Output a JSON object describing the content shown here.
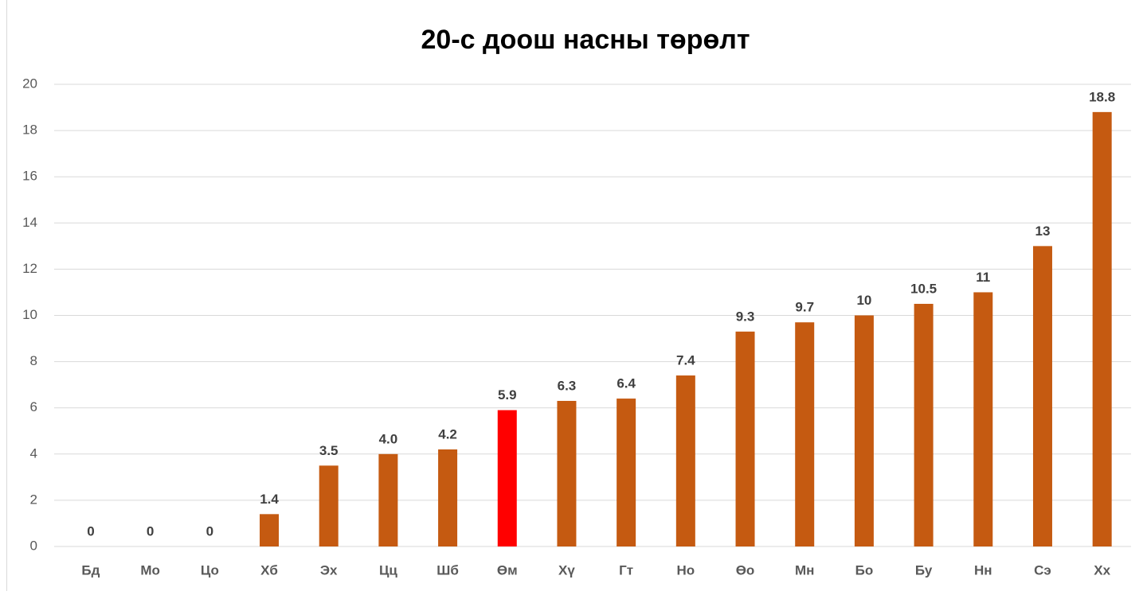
{
  "chart_data": {
    "type": "bar",
    "title": "20-с доош насны төрөлт",
    "categories": [
      "Бд",
      "Мо",
      "Цо",
      "Хб",
      "Эх",
      "Цц",
      "Шб",
      "Өм",
      "Хү",
      "Гт",
      "Но",
      "Өо",
      "Мн",
      "Бо",
      "Бу",
      "Нн",
      "Сэ",
      "Хх"
    ],
    "values": [
      0,
      0,
      0,
      1.4,
      3.5,
      4,
      4.2,
      5.9,
      6.3,
      6.4,
      7.4,
      9.3,
      9.7,
      10,
      10.5,
      11,
      13,
      18.8
    ],
    "value_labels": [
      "0",
      "0",
      "0",
      "1.4",
      "3.5",
      "4.0",
      "4.2",
      "5.9",
      "6.3",
      "6.4",
      "7.4",
      "9.3",
      "9.7",
      "10",
      "10.5",
      "11",
      "13",
      "18.8"
    ],
    "colors": [
      "#c55a11",
      "#c55a11",
      "#c55a11",
      "#c55a11",
      "#c55a11",
      "#c55a11",
      "#c55a11",
      "#ff0000",
      "#c55a11",
      "#c55a11",
      "#c55a11",
      "#c55a11",
      "#c55a11",
      "#c55a11",
      "#c55a11",
      "#c55a11",
      "#c55a11",
      "#c55a11"
    ],
    "ylim": [
      0,
      20
    ],
    "yticks": [
      0,
      2,
      4,
      6,
      8,
      10,
      12,
      14,
      16,
      18,
      20
    ],
    "grid": true
  }
}
